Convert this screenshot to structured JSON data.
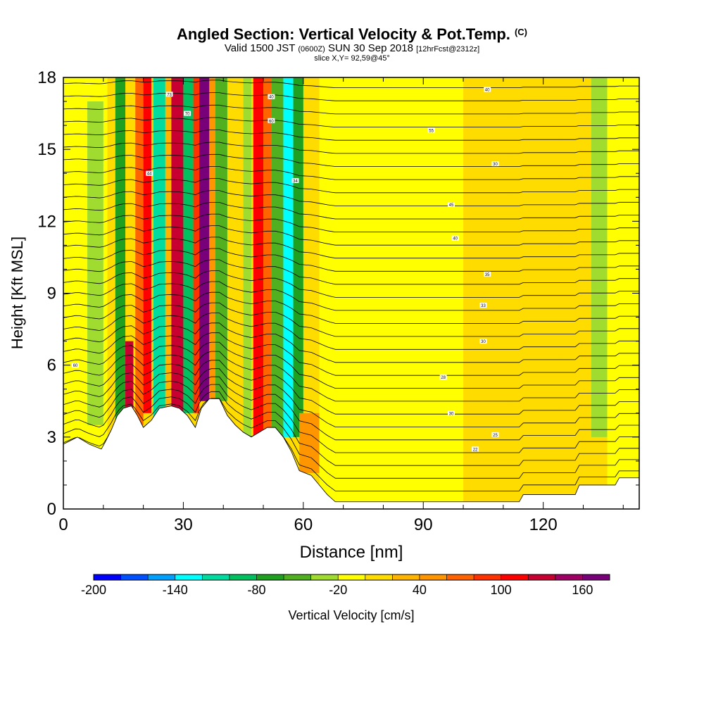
{
  "header": {
    "title": "Angled Section: Vertical Velocity & Pot.Temp.",
    "title_unit": "(C)",
    "valid_prefix": "Valid 1500 JST",
    "valid_z": "(0600Z)",
    "valid_date": "SUN 30 Sep 2018",
    "forecast": "[12hrFcst@2312z]",
    "slice": "slice X,Y= 92,59@45°"
  },
  "chart_data": {
    "type": "heatmap",
    "xlabel": "Distance [nm]",
    "ylabel": "Height [Kft MSL]",
    "xlim": [
      0,
      144
    ],
    "ylim": [
      0,
      18
    ],
    "x_ticks": [
      0,
      30,
      60,
      90,
      120
    ],
    "y_ticks": [
      0,
      3,
      6,
      9,
      12,
      15,
      18
    ],
    "colorbar": {
      "label": "Vertical Velocity [cm/s]",
      "tick_labels": [
        -200,
        -140,
        -80,
        -20,
        40,
        100,
        160
      ],
      "min": -200,
      "max": 180,
      "step": 20,
      "colors": [
        "#0000ff",
        "#0050ff",
        "#00a0ff",
        "#00ffff",
        "#00dca0",
        "#00c060",
        "#20a020",
        "#50b020",
        "#a0dc30",
        "#ffff00",
        "#ffdc00",
        "#ffb400",
        "#ff9600",
        "#ff6400",
        "#ff3200",
        "#ff0000",
        "#c80032",
        "#a00064",
        "#780078"
      ]
    },
    "vertical_velocity_cells": [
      {
        "x": [
          0,
          11
        ],
        "z": [
          2.5,
          18
        ],
        "value": -20
      },
      {
        "x": [
          6,
          10
        ],
        "z": [
          3.5,
          17
        ],
        "value": -40
      },
      {
        "x": [
          13,
          15.5
        ],
        "z": [
          3,
          18
        ],
        "value": -70
      },
      {
        "x": [
          15.5,
          17.5
        ],
        "z": [
          4,
          7
        ],
        "value": 130
      },
      {
        "x": [
          18,
          20
        ],
        "z": [
          3.5,
          18
        ],
        "value": 70
      },
      {
        "x": [
          20,
          22
        ],
        "z": [
          4,
          18
        ],
        "value": 110
      },
      {
        "x": [
          22.5,
          25.5
        ],
        "z": [
          3.5,
          18
        ],
        "value": -110
      },
      {
        "x": [
          25.5,
          27
        ],
        "z": [
          3.5,
          18
        ],
        "value": 30
      },
      {
        "x": [
          27,
          30
        ],
        "z": [
          4,
          18
        ],
        "value": 120
      },
      {
        "x": [
          30,
          32.5
        ],
        "z": [
          4,
          18
        ],
        "value": -100
      },
      {
        "x": [
          32.5,
          34
        ],
        "z": [
          4,
          18
        ],
        "value": 80
      },
      {
        "x": [
          34,
          36.5
        ],
        "z": [
          4.5,
          18
        ],
        "value": 170
      },
      {
        "x": [
          36.5,
          38
        ],
        "z": [
          4.5,
          18
        ],
        "value": 40
      },
      {
        "x": [
          38,
          41
        ],
        "z": [
          4.5,
          18
        ],
        "value": -60
      },
      {
        "x": [
          45,
          47
        ],
        "z": [
          3,
          18
        ],
        "value": -40
      },
      {
        "x": [
          47.5,
          50
        ],
        "z": [
          3,
          18
        ],
        "value": 100
      },
      {
        "x": [
          50,
          52
        ],
        "z": [
          3,
          18
        ],
        "value": 60
      },
      {
        "x": [
          52,
          55
        ],
        "z": [
          3,
          18
        ],
        "value": -60
      },
      {
        "x": [
          55,
          57.5
        ],
        "z": [
          3,
          18
        ],
        "value": -130
      },
      {
        "x": [
          57.5,
          60
        ],
        "z": [
          3,
          18
        ],
        "value": -80
      },
      {
        "x": [
          59,
          64
        ],
        "z": [
          1.5,
          4
        ],
        "value": 40
      },
      {
        "x": [
          64,
          100
        ],
        "z": [
          0.3,
          18
        ],
        "value": -20
      },
      {
        "x": [
          112,
          124
        ],
        "z": [
          0.3,
          18
        ],
        "value": 0
      },
      {
        "x": [
          132,
          136
        ],
        "z": [
          3,
          18
        ],
        "value": -40
      },
      {
        "x": [
          136,
          144
        ],
        "z": [
          0.5,
          18
        ],
        "value": -20
      }
    ],
    "terrain_kft": [
      [
        0,
        2.7
      ],
      [
        3.5,
        3
      ],
      [
        6.5,
        2.7
      ],
      [
        9.5,
        2.5
      ],
      [
        10.5,
        2.8
      ],
      [
        12,
        3.3
      ],
      [
        13.5,
        3.9
      ],
      [
        15,
        4.2
      ],
      [
        17,
        4.3
      ],
      [
        18.5,
        3.9
      ],
      [
        20,
        3.4
      ],
      [
        22,
        3.7
      ],
      [
        24,
        4.2
      ],
      [
        27,
        4.3
      ],
      [
        29,
        4.2
      ],
      [
        31,
        3.9
      ],
      [
        33,
        3.4
      ],
      [
        34.5,
        4.2
      ],
      [
        36.5,
        4.6
      ],
      [
        39,
        4.6
      ],
      [
        41,
        3.9
      ],
      [
        43,
        3.5
      ],
      [
        45,
        3.2
      ],
      [
        47,
        3.0
      ],
      [
        49,
        3.2
      ],
      [
        51,
        3.4
      ],
      [
        53,
        3.4
      ],
      [
        55,
        3.0
      ],
      [
        57,
        2.4
      ],
      [
        59,
        1.6
      ],
      [
        62,
        1.4
      ],
      [
        64,
        1.0
      ],
      [
        66,
        0.6
      ],
      [
        68,
        0.3
      ],
      [
        100,
        0.3
      ],
      [
        114,
        0.3
      ],
      [
        115,
        0.6
      ],
      [
        128,
        0.6
      ],
      [
        129,
        1.0
      ],
      [
        138,
        1.0
      ],
      [
        139,
        1.3
      ],
      [
        144,
        1.3
      ]
    ],
    "contour_label_samples": [
      {
        "x": 3,
        "z": 6.0,
        "text": "60"
      },
      {
        "x": 26.5,
        "z": 17.3,
        "text": "73"
      },
      {
        "x": 31,
        "z": 16.5,
        "text": "70"
      },
      {
        "x": 21.5,
        "z": 14.0,
        "text": "44"
      },
      {
        "x": 52,
        "z": 17.2,
        "text": "40"
      },
      {
        "x": 52,
        "z": 16.2,
        "text": "60"
      },
      {
        "x": 58,
        "z": 13.7,
        "text": "34"
      },
      {
        "x": 106,
        "z": 17.5,
        "text": "40"
      },
      {
        "x": 92,
        "z": 15.8,
        "text": "55"
      },
      {
        "x": 108,
        "z": 14.4,
        "text": "30"
      },
      {
        "x": 97,
        "z": 12.7,
        "text": "45"
      },
      {
        "x": 98,
        "z": 11.3,
        "text": "40"
      },
      {
        "x": 106,
        "z": 9.8,
        "text": "35"
      },
      {
        "x": 105,
        "z": 8.5,
        "text": "33"
      },
      {
        "x": 105,
        "z": 7.0,
        "text": "30"
      },
      {
        "x": 95,
        "z": 5.5,
        "text": "28"
      },
      {
        "x": 97,
        "z": 4.0,
        "text": "30"
      },
      {
        "x": 108,
        "z": 3.1,
        "text": "25"
      },
      {
        "x": 103,
        "z": 2.5,
        "text": "22"
      }
    ]
  }
}
